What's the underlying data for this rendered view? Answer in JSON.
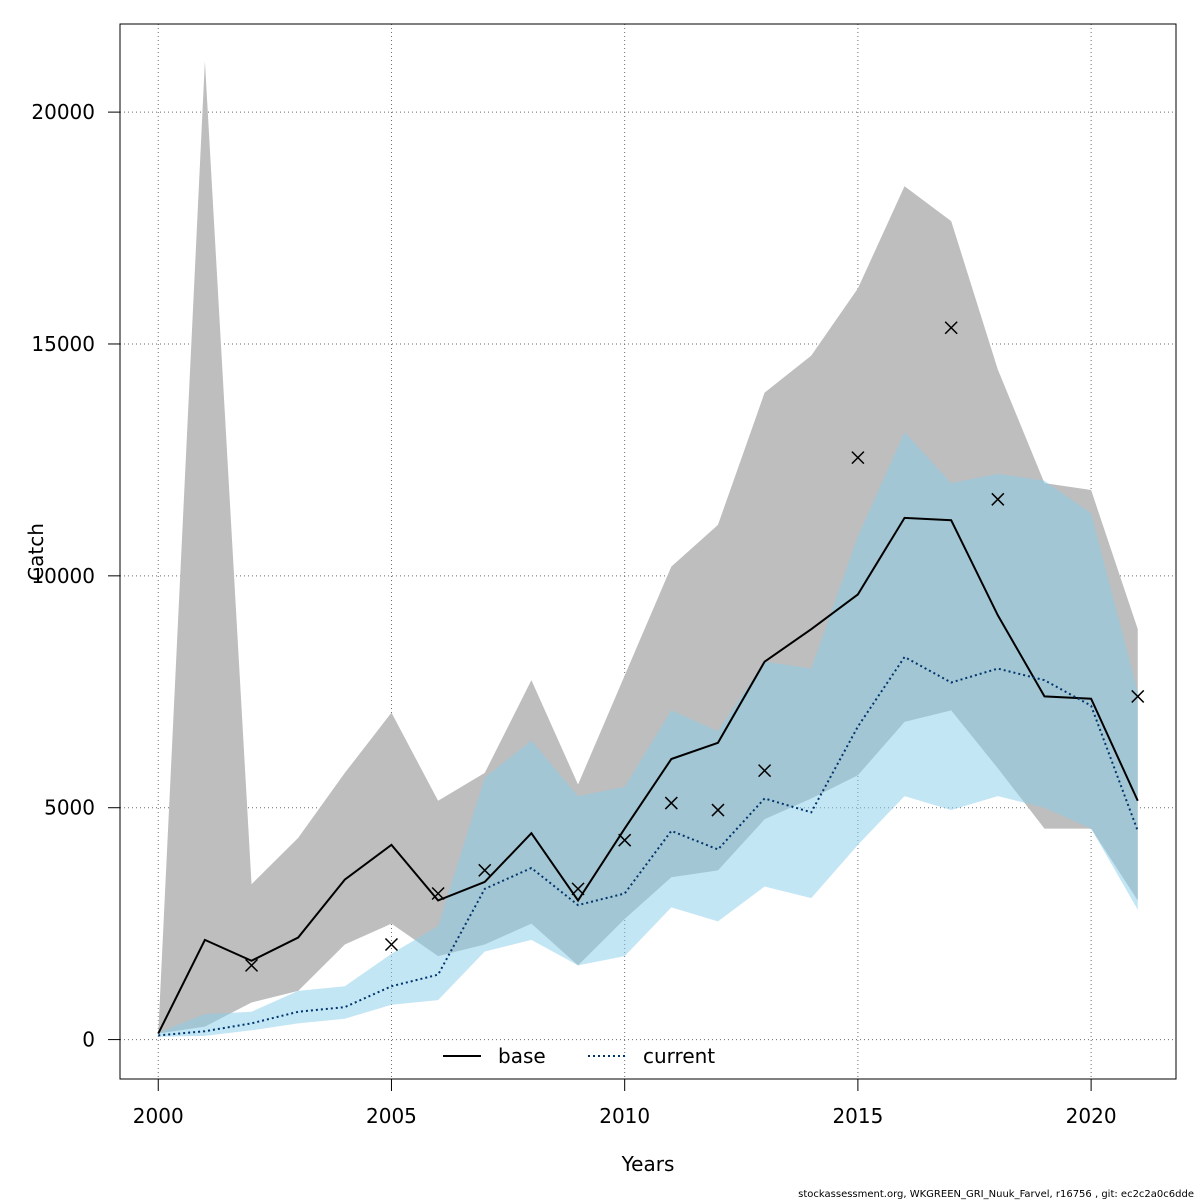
{
  "chart_data": {
    "type": "line",
    "title": "",
    "xlabel": "Years",
    "ylabel": "Catch",
    "xlim": [
      1999.18,
      2021.82
    ],
    "ylim": [
      -850,
      21900
    ],
    "grid": true,
    "legend_position": "bottom",
    "x_ticks": [
      2000,
      2005,
      2010,
      2015,
      2020
    ],
    "y_ticks": [
      0,
      5000,
      10000,
      15000,
      20000
    ],
    "x": [
      2000,
      2001,
      2002,
      2003,
      2004,
      2005,
      2006,
      2007,
      2008,
      2009,
      2010,
      2011,
      2012,
      2013,
      2014,
      2015,
      2016,
      2017,
      2018,
      2019,
      2020,
      2021
    ],
    "series": [
      {
        "name": "base",
        "color": "#000000",
        "band_color": "#bebebe",
        "line_style": "solid",
        "values": [
          130,
          2150,
          1700,
          2200,
          3450,
          4200,
          3000,
          3400,
          4450,
          3000,
          4550,
          6050,
          6400,
          8150,
          8850,
          9600,
          11250,
          11200,
          9150,
          7400,
          7350,
          5150
        ],
        "lower": [
          130,
          280,
          800,
          1050,
          2050,
          2500,
          1800,
          2050,
          2500,
          1600,
          2600,
          3500,
          3650,
          4750,
          5200,
          5700,
          6850,
          7100,
          5850,
          4550,
          4550,
          3000
        ],
        "upper": [
          130,
          21100,
          3350,
          4350,
          5750,
          7050,
          5150,
          5750,
          7750,
          5500,
          7850,
          10200,
          11100,
          13950,
          14750,
          16200,
          18400,
          17650,
          14450,
          12000,
          11850,
          8850
        ]
      },
      {
        "name": "current",
        "color": "#00356b",
        "band_color": "#87ceeb",
        "line_style": "dotted",
        "values": [
          90,
          180,
          350,
          600,
          700,
          1150,
          1400,
          3250,
          3700,
          2900,
          3150,
          4500,
          4100,
          5200,
          4900,
          6750,
          8250,
          7700,
          8000,
          7750,
          7200,
          4500
        ],
        "lower": [
          60,
          80,
          200,
          350,
          450,
          750,
          850,
          1900,
          2150,
          1600,
          1800,
          2850,
          2550,
          3300,
          3050,
          4200,
          5250,
          4950,
          5250,
          5000,
          4550,
          2800
        ],
        "upper": [
          150,
          550,
          600,
          1050,
          1150,
          1850,
          2450,
          5650,
          6450,
          5250,
          5450,
          7100,
          6650,
          8150,
          8000,
          10850,
          13100,
          12000,
          12200,
          12050,
          11350,
          7500
        ]
      }
    ],
    "observations": {
      "marker": "x",
      "x": [
        2002,
        2005,
        2006,
        2007,
        2009,
        2010,
        2011,
        2012,
        2013,
        2015,
        2017,
        2018,
        2021
      ],
      "values": [
        1600,
        2050,
        3150,
        3650,
        3250,
        4300,
        5100,
        4950,
        5800,
        12550,
        15350,
        11650,
        7400
      ]
    }
  },
  "footer": {
    "note": "stockassessment.org, WKGREEN_GRI_Nuuk_Farvel, r16756 , git: ec2c2a0c6dde"
  }
}
